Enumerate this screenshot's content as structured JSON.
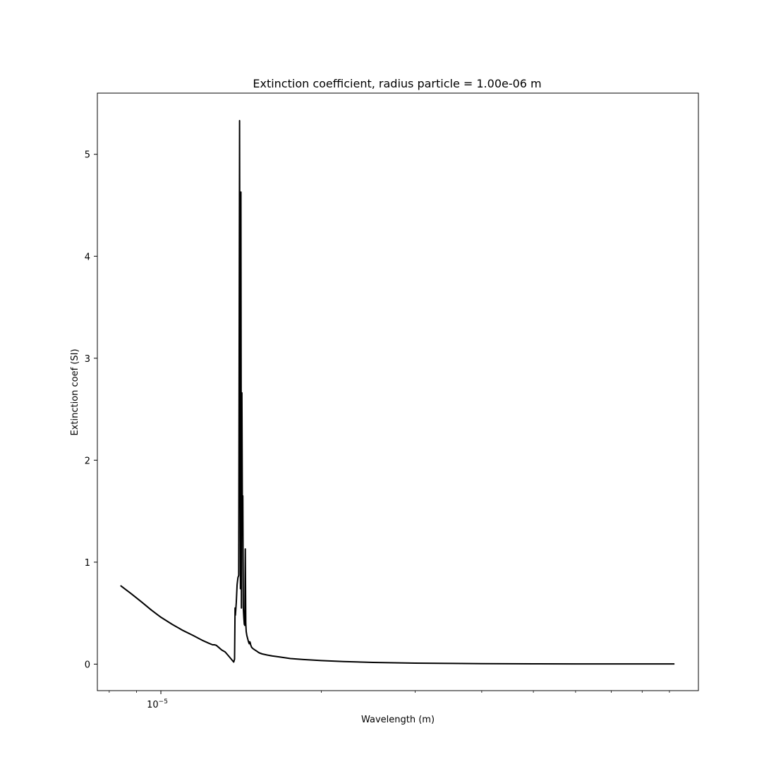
{
  "chart_data": {
    "type": "line",
    "title": "Extinction coefficient, radius particle = 1.00e-06 m",
    "xlabel": "Wavelength (m)",
    "ylabel": "Extinction coef (SI)",
    "x_scale": "log",
    "xlim": [
      7.6e-06,
      0.000102
    ],
    "ylim": [
      -0.26,
      5.6
    ],
    "x_major_ticks": [
      {
        "value": 1e-05,
        "base": "10",
        "exp": "−5"
      }
    ],
    "x_minor_ticks": [
      8e-06,
      9e-06,
      2e-05,
      3e-05,
      4e-05,
      5e-05,
      6e-05,
      7e-05,
      8e-05,
      9e-05
    ],
    "y_ticks": [
      {
        "value": 0,
        "label": "0"
      },
      {
        "value": 1,
        "label": "1"
      },
      {
        "value": 2,
        "label": "2"
      },
      {
        "value": 3,
        "label": "3"
      },
      {
        "value": 4,
        "label": "4"
      },
      {
        "value": 5,
        "label": "5"
      }
    ],
    "grid": false,
    "line_color": "#000000",
    "series": [
      {
        "x": [
          8.4e-06,
          8.8e-06,
          9.2e-06,
          9.6e-06,
          1e-05,
          1.05e-05,
          1.1e-05,
          1.15e-05,
          1.2e-05,
          1.23e-05,
          1.25e-05,
          1.26e-05,
          1.27e-05,
          1.28e-05,
          1.3e-05,
          1.32e-05,
          1.34e-05,
          1.36e-05,
          1.37e-05,
          1.375e-05,
          1.378e-05,
          1.38e-05,
          1.385e-05,
          1.39e-05,
          1.395e-05,
          1.4e-05,
          1.405e-05,
          1.41e-05,
          1.413e-05,
          1.416e-05,
          1.419e-05,
          1.422e-05,
          1.425e-05,
          1.428e-05,
          1.431e-05,
          1.434e-05,
          1.437e-05,
          1.44e-05,
          1.443e-05,
          1.446e-05,
          1.45e-05,
          1.455e-05,
          1.46e-05,
          1.465e-05,
          1.468e-05,
          1.471e-05,
          1.474e-05,
          1.48e-05,
          1.49e-05,
          1.5e-05,
          1.51e-05,
          1.52e-05,
          1.53e-05,
          1.55e-05,
          1.58e-05,
          1.62e-05,
          1.67e-05,
          1.75e-05,
          1.85e-05,
          2e-05,
          2.2e-05,
          2.5e-05,
          3e-05,
          3.5e-05,
          4e-05,
          5e-05,
          6e-05,
          7e-05,
          8e-05,
          9.2e-05
        ],
        "y": [
          0.77,
          0.69,
          0.61,
          0.53,
          0.46,
          0.39,
          0.33,
          0.28,
          0.23,
          0.205,
          0.19,
          0.19,
          0.185,
          0.17,
          0.14,
          0.12,
          0.08,
          0.04,
          0.02,
          0.05,
          0.55,
          0.48,
          0.6,
          0.78,
          0.85,
          0.87,
          5.33,
          0.74,
          4.63,
          0.55,
          2.66,
          1.45,
          1.65,
          0.55,
          0.46,
          0.39,
          0.38,
          1.13,
          0.4,
          0.32,
          0.28,
          0.25,
          0.22,
          0.2,
          0.22,
          0.21,
          0.19,
          0.165,
          0.15,
          0.14,
          0.13,
          0.12,
          0.11,
          0.1,
          0.09,
          0.08,
          0.07,
          0.055,
          0.045,
          0.035,
          0.025,
          0.017,
          0.01,
          0.007,
          0.005,
          0.003,
          0.002,
          0.002,
          0.002,
          0.002
        ]
      }
    ]
  }
}
